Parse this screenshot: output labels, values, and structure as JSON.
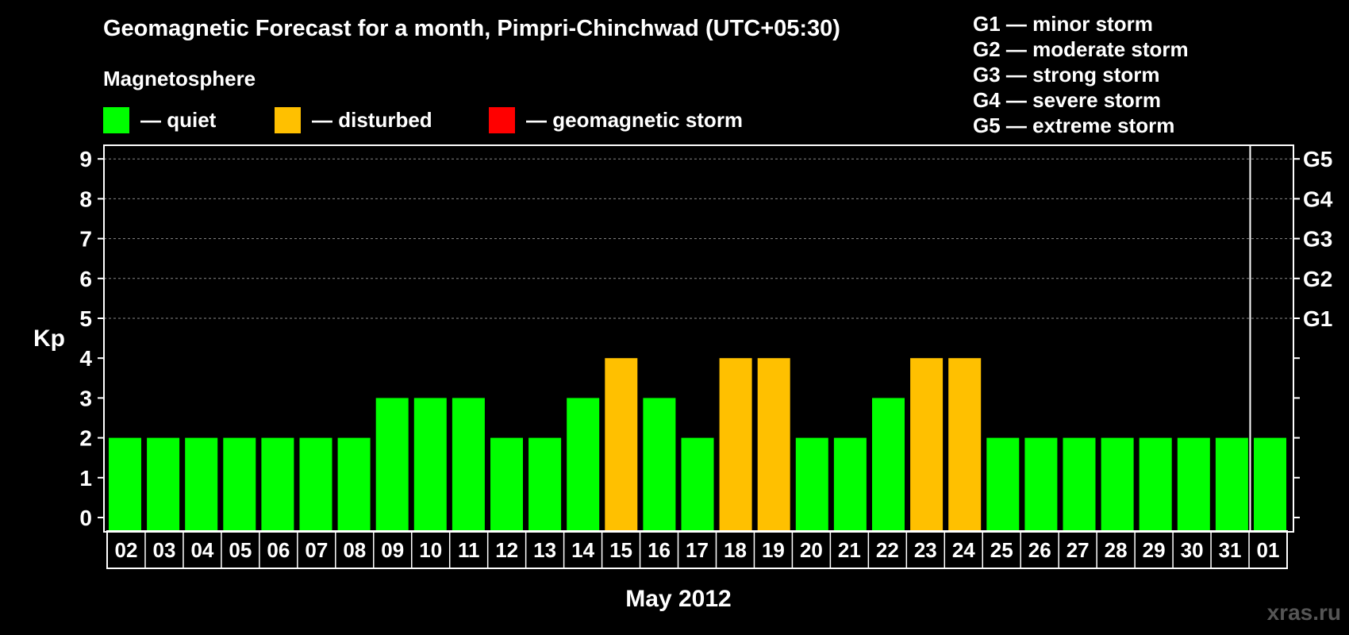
{
  "chart_data": {
    "type": "bar",
    "title": "Geomagnetic Forecast for a month, Pimpri-Chinchwad (UTC+05:30)",
    "subtitle": "Magnetosphere",
    "legend": [
      {
        "label": "— quiet",
        "color": "#00ff00"
      },
      {
        "label": "— disturbed",
        "color": "#ffc000"
      },
      {
        "label": "— geomagnetic storm",
        "color": "#ff0000"
      }
    ],
    "storm_scale": [
      "G1 — minor storm",
      "G2 — moderate storm",
      "G3 — strong storm",
      "G4 — severe storm",
      "G5 — extreme storm"
    ],
    "ylabel": "Kp",
    "xlabel": "May 2012",
    "ylim": [
      0,
      9
    ],
    "yticks": [
      "0",
      "1",
      "2",
      "3",
      "4",
      "5",
      "6",
      "7",
      "8",
      "9"
    ],
    "right_ticks": [
      {
        "value": 5,
        "label": "G1"
      },
      {
        "value": 6,
        "label": "G2"
      },
      {
        "value": 7,
        "label": "G3"
      },
      {
        "value": 8,
        "label": "G4"
      },
      {
        "value": 9,
        "label": "G5"
      }
    ],
    "categories": [
      "02",
      "03",
      "04",
      "05",
      "06",
      "07",
      "08",
      "09",
      "10",
      "11",
      "12",
      "13",
      "14",
      "15",
      "16",
      "17",
      "18",
      "19",
      "20",
      "21",
      "22",
      "23",
      "24",
      "25",
      "26",
      "27",
      "28",
      "29",
      "30",
      "31",
      "01"
    ],
    "values": [
      2,
      2,
      2,
      2,
      2,
      2,
      2,
      3,
      3,
      3,
      2,
      2,
      3,
      4,
      3,
      2,
      4,
      4,
      2,
      2,
      3,
      4,
      4,
      2,
      2,
      2,
      2,
      2,
      2,
      2,
      2
    ],
    "colors": {
      "quiet": "#00ff00",
      "disturbed": "#ffc000",
      "storm": "#ff0000"
    }
  },
  "watermark": "xras.ru"
}
